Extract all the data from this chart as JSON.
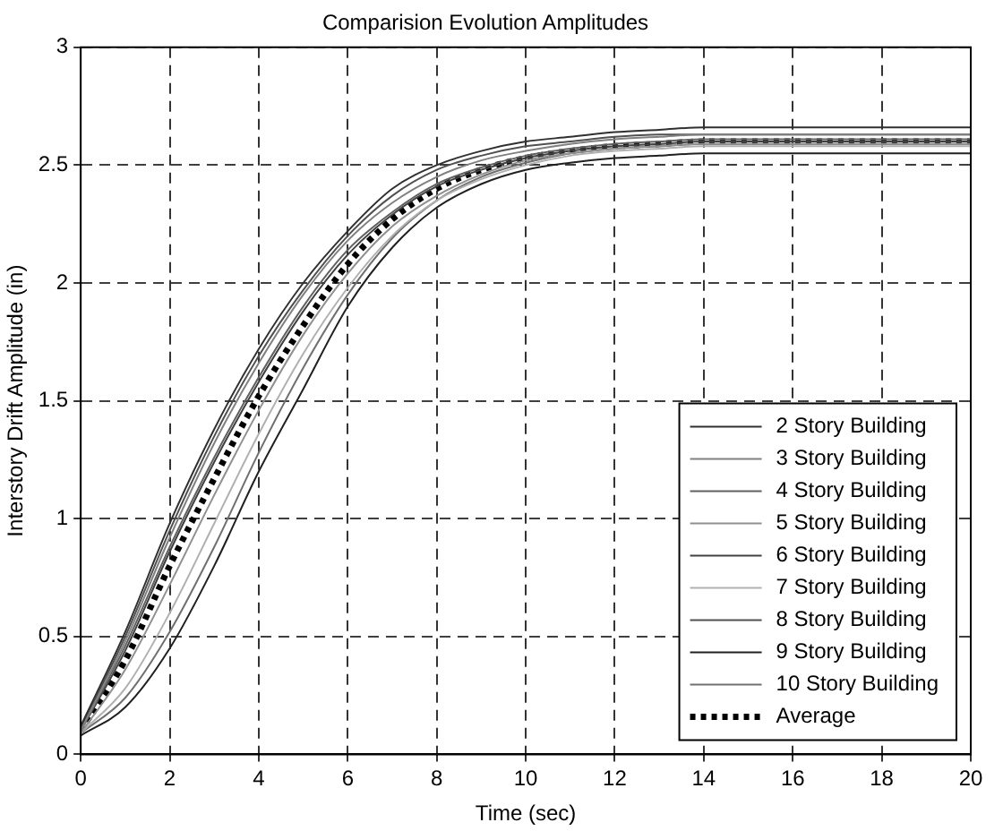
{
  "chart_data": {
    "type": "line",
    "title": "Comparision Evolution Amplitudes",
    "xlabel": "Time (sec)",
    "ylabel": "Interstory Drift Amplitude (in)",
    "x": [
      0,
      1,
      2,
      3,
      4,
      5,
      6,
      7,
      8,
      9,
      10,
      11,
      12,
      13,
      14,
      15,
      16,
      17,
      18,
      19,
      20
    ],
    "xlim": [
      0,
      20
    ],
    "xticks": [
      0,
      2,
      4,
      6,
      8,
      10,
      12,
      14,
      16,
      18,
      20
    ],
    "ylim": [
      0,
      3
    ],
    "yticks": [
      0,
      0.5,
      1,
      1.5,
      2,
      2.5,
      3
    ],
    "grid": true,
    "legend": "bottom right",
    "marker": "none",
    "series": [
      {
        "name": "2 Story Building",
        "color": "#303030",
        "line_style": "solid",
        "values": [
          0.12,
          0.52,
          0.98,
          1.38,
          1.72,
          2.0,
          2.22,
          2.4,
          2.5,
          2.56,
          2.6,
          2.62,
          2.64,
          2.65,
          2.66,
          2.66,
          2.66,
          2.66,
          2.66,
          2.66,
          2.66
        ]
      },
      {
        "name": "3 Story Building",
        "color": "#808080",
        "line_style": "solid",
        "values": [
          0.1,
          0.48,
          0.92,
          1.32,
          1.66,
          1.95,
          2.18,
          2.34,
          2.45,
          2.52,
          2.56,
          2.59,
          2.61,
          2.62,
          2.63,
          2.63,
          2.63,
          2.63,
          2.63,
          2.63,
          2.63
        ]
      },
      {
        "name": "4 Story Building",
        "color": "#606060",
        "line_style": "solid",
        "values": [
          0.1,
          0.46,
          0.88,
          1.26,
          1.6,
          1.9,
          2.14,
          2.3,
          2.42,
          2.49,
          2.54,
          2.57,
          2.59,
          2.6,
          2.61,
          2.61,
          2.61,
          2.61,
          2.61,
          2.61,
          2.61
        ]
      },
      {
        "name": "5 Story Building",
        "color": "#909090",
        "line_style": "solid",
        "values": [
          0.09,
          0.36,
          0.72,
          1.1,
          1.46,
          1.78,
          2.04,
          2.24,
          2.37,
          2.46,
          2.52,
          2.55,
          2.57,
          2.58,
          2.59,
          2.59,
          2.59,
          2.59,
          2.59,
          2.59,
          2.59
        ]
      },
      {
        "name": "6 Story Building",
        "color": "#404040",
        "line_style": "solid",
        "values": [
          0.1,
          0.44,
          0.86,
          1.24,
          1.58,
          1.88,
          2.12,
          2.29,
          2.41,
          2.48,
          2.53,
          2.56,
          2.58,
          2.59,
          2.6,
          2.6,
          2.6,
          2.6,
          2.6,
          2.6,
          2.6
        ]
      },
      {
        "name": "7 Story Building",
        "color": "#b0b0b0",
        "line_style": "solid",
        "values": [
          0.09,
          0.28,
          0.6,
          0.98,
          1.36,
          1.7,
          1.98,
          2.2,
          2.35,
          2.44,
          2.5,
          2.54,
          2.56,
          2.57,
          2.58,
          2.58,
          2.58,
          2.58,
          2.58,
          2.58,
          2.58
        ]
      },
      {
        "name": "8 Story Building",
        "color": "#505050",
        "line_style": "solid",
        "values": [
          0.11,
          0.5,
          0.95,
          1.35,
          1.69,
          1.97,
          2.2,
          2.37,
          2.48,
          2.54,
          2.58,
          2.6,
          2.62,
          2.63,
          2.63,
          2.63,
          2.63,
          2.63,
          2.63,
          2.63,
          2.63
        ]
      },
      {
        "name": "9 Story Building",
        "color": "#202020",
        "line_style": "solid",
        "values": [
          0.08,
          0.2,
          0.45,
          0.8,
          1.2,
          1.55,
          1.9,
          2.15,
          2.32,
          2.42,
          2.48,
          2.51,
          2.53,
          2.54,
          2.55,
          2.55,
          2.55,
          2.55,
          2.55,
          2.55,
          2.55
        ]
      },
      {
        "name": "10 Story Building",
        "color": "#707070",
        "line_style": "solid",
        "values": [
          0.09,
          0.24,
          0.52,
          0.88,
          1.28,
          1.64,
          1.95,
          2.19,
          2.35,
          2.45,
          2.51,
          2.55,
          2.57,
          2.58,
          2.59,
          2.59,
          2.59,
          2.59,
          2.59,
          2.59,
          2.59
        ]
      },
      {
        "name": "Average",
        "color": "#000000",
        "line_style": "dotted",
        "values": [
          0.1,
          0.4,
          0.8,
          1.17,
          1.52,
          1.82,
          2.08,
          2.27,
          2.4,
          2.48,
          2.53,
          2.56,
          2.58,
          2.59,
          2.6,
          2.6,
          2.6,
          2.6,
          2.6,
          2.6,
          2.6
        ]
      }
    ]
  }
}
